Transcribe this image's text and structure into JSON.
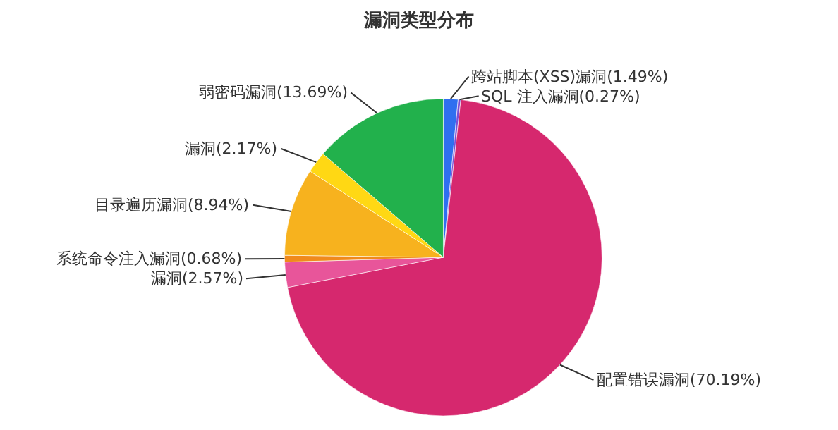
{
  "chart_data": {
    "type": "pie",
    "title": "漏洞类型分布",
    "categories": [
      "跨站脚本(XSS)漏洞(1.49%)",
      "SQL 注入漏洞(0.27%)",
      "配置错误漏洞(70.19%)",
      "漏洞(2.57%)",
      "系统命令注入漏洞(0.68%)",
      "目录遍历漏洞(8.94%)",
      "漏洞(2.17%)",
      "弱密码漏洞(13.69%)"
    ],
    "values": [
      1.49,
      0.27,
      70.19,
      2.57,
      0.68,
      8.94,
      2.17,
      13.69
    ],
    "colors": [
      "#2f6ff0",
      "#7b4fd6",
      "#d6286e",
      "#e8559a",
      "#f08a1c",
      "#f7b21e",
      "#ffd814",
      "#22b14c"
    ],
    "legend": false
  }
}
